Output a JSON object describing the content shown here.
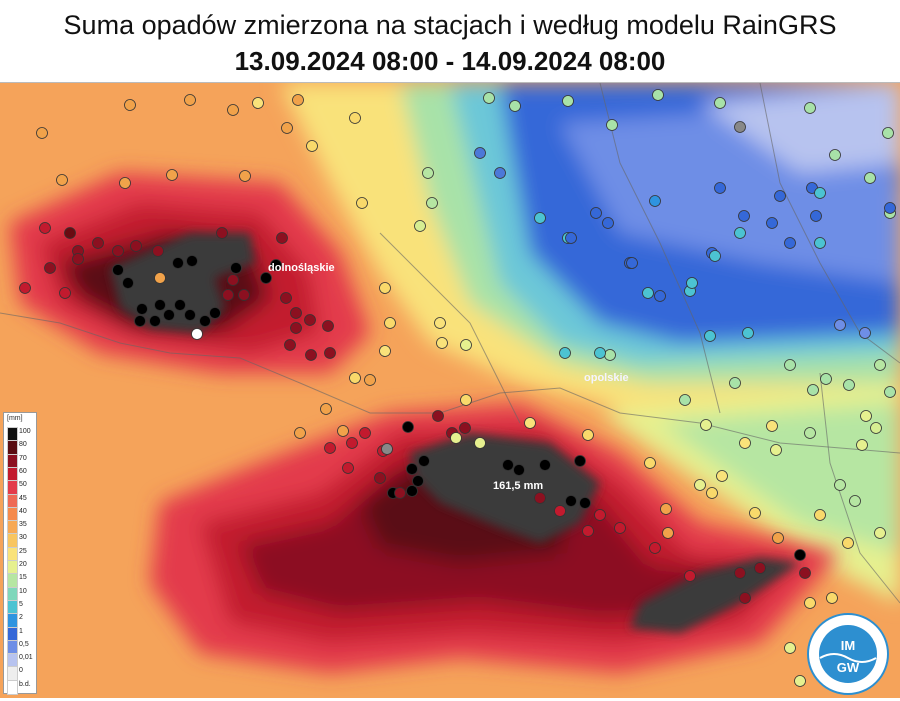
{
  "header": {
    "title": "Suma opadów zmierzona na stacjach i według modelu RainGRS",
    "subtitle": "13.09.2024 08:00 - 14.09.2024 08:00"
  },
  "annotations": {
    "max_value": "161,5 mm",
    "region_labels": [
      "dolnośląskie",
      "opolskie"
    ]
  },
  "legend": {
    "unit": "[mm]",
    "items": [
      {
        "label": "100",
        "color": "#101010"
      },
      {
        "label": "80",
        "color": "#5a0d12"
      },
      {
        "label": "70",
        "color": "#8c1020"
      },
      {
        "label": "60",
        "color": "#c21a2e"
      },
      {
        "label": "50",
        "color": "#e33b4b"
      },
      {
        "label": "45",
        "color": "#ee6a55"
      },
      {
        "label": "40",
        "color": "#f58a4d"
      },
      {
        "label": "35",
        "color": "#f7a955"
      },
      {
        "label": "30",
        "color": "#f8c560"
      },
      {
        "label": "25",
        "color": "#f9e27a"
      },
      {
        "label": "20",
        "color": "#e6f08f"
      },
      {
        "label": "15",
        "color": "#b6e6a2"
      },
      {
        "label": "10",
        "color": "#7fd7bb"
      },
      {
        "label": "5",
        "color": "#4cc3d2"
      },
      {
        "label": "2",
        "color": "#2f94e0"
      },
      {
        "label": "1",
        "color": "#3568d8"
      },
      {
        "label": "0,5",
        "color": "#6e8ee6"
      },
      {
        "label": "0,01",
        "color": "#b7c3ef"
      },
      {
        "label": "0",
        "color": "#eeeeee"
      },
      {
        "label": "b.d.",
        "color": "#ffffff"
      }
    ]
  },
  "logo": {
    "text": "IMGW",
    "ring_text": "INSTYTUT METEOROLOGII I GOSPODARKI WODNEJ • PAŃSTWOWY INSTYTUT BADAWCZY"
  },
  "colors": {
    "heavy": "#3a3a3a",
    "intense": "#c21a2e",
    "moderate": "#ee6a55",
    "light": "#f8c560",
    "blue": "#3568d8"
  }
}
